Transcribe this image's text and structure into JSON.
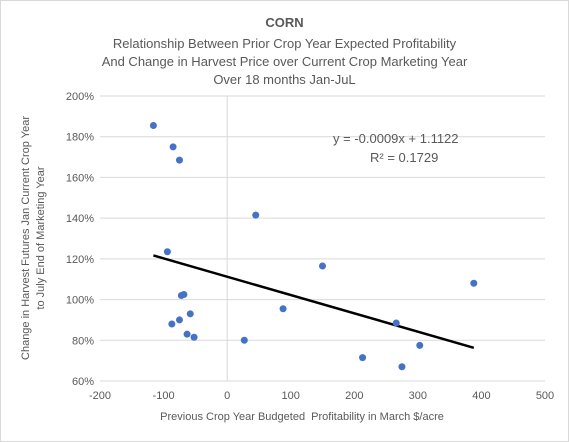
{
  "chart_data": {
    "type": "scatter",
    "title": "CORN",
    "subtitle": [
      "Relationship Between Prior Crop Year Expected Profitability",
      "And Change in Harvest Price over Current Crop Marketing Year",
      "Over 18 months Jan-JuL"
    ],
    "xlabel": "Previous Crop Year Budgeted  Profitability in March $/acre",
    "ylabel": [
      "Change in Harvest Futures Jan Current Crop Year",
      "to July End of Marketing Year"
    ],
    "xlim": [
      -200,
      500
    ],
    "ylim": [
      0.6,
      2.0
    ],
    "x_ticks": [
      -200,
      -100,
      0,
      100,
      200,
      300,
      400,
      500
    ],
    "y_ticks": [
      0.6,
      0.8,
      1.0,
      1.2,
      1.4,
      1.6,
      1.8,
      2.0
    ],
    "x_tick_labels": [
      "-200",
      "-100",
      "0",
      "100",
      "200",
      "300",
      "400",
      "500"
    ],
    "y_tick_labels": [
      "60%",
      "80%",
      "100%",
      "120%",
      "140%",
      "160%",
      "180%",
      "200%"
    ],
    "grid": "horizontal",
    "marker_color": "#4472c4",
    "trendline_color": "#000000",
    "points": [
      {
        "x": -116,
        "y": 1.855
      },
      {
        "x": -85,
        "y": 1.75
      },
      {
        "x": -75,
        "y": 1.685
      },
      {
        "x": -94,
        "y": 1.235
      },
      {
        "x": 45,
        "y": 1.415
      },
      {
        "x": 150,
        "y": 1.165
      },
      {
        "x": 388,
        "y": 1.08
      },
      {
        "x": -72,
        "y": 1.02
      },
      {
        "x": -68,
        "y": 1.025
      },
      {
        "x": -58,
        "y": 0.93
      },
      {
        "x": -75,
        "y": 0.9
      },
      {
        "x": -87,
        "y": 0.88
      },
      {
        "x": -63,
        "y": 0.83
      },
      {
        "x": -52,
        "y": 0.815
      },
      {
        "x": 88,
        "y": 0.955
      },
      {
        "x": 27,
        "y": 0.8
      },
      {
        "x": 266,
        "y": 0.885
      },
      {
        "x": 213,
        "y": 0.715
      },
      {
        "x": 303,
        "y": 0.775
      },
      {
        "x": 275,
        "y": 0.67
      }
    ],
    "trendline": {
      "slope": -0.0009,
      "intercept": 1.1122,
      "x_range": [
        -116,
        388
      ],
      "equation": "y = -0.0009x + 1.1122",
      "r_squared": "R² = 0.1729"
    }
  }
}
